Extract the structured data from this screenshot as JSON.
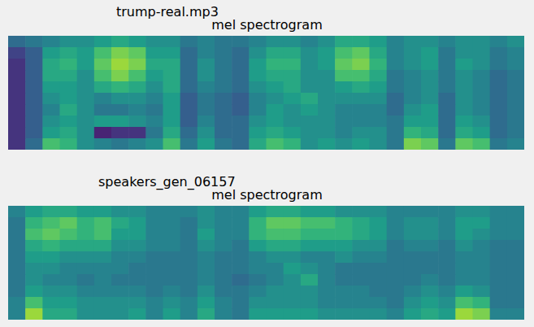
{
  "chart_data": [
    {
      "type": "heatmap",
      "title": "trump-real.mp3",
      "subtitle": "mel spectrogram",
      "tick_labels": false,
      "cells": [
        [
          0.35,
          0.4,
          0.45,
          0.5,
          0.5,
          0.55,
          0.6,
          0.55,
          0.5,
          0.5,
          0.4,
          0.45,
          0.4,
          0.4,
          0.45,
          0.5,
          0.5,
          0.45,
          0.5,
          0.6,
          0.6,
          0.55,
          0.45,
          0.5,
          0.5,
          0.45,
          0.5,
          0.5,
          0.45,
          0.5
        ],
        [
          0.2,
          0.3,
          0.55,
          0.6,
          0.55,
          0.7,
          0.8,
          0.75,
          0.55,
          0.55,
          0.35,
          0.45,
          0.4,
          0.35,
          0.5,
          0.6,
          0.6,
          0.5,
          0.55,
          0.7,
          0.75,
          0.6,
          0.45,
          0.5,
          0.55,
          0.4,
          0.5,
          0.5,
          0.4,
          0.45
        ],
        [
          0.15,
          0.3,
          0.6,
          0.65,
          0.55,
          0.75,
          0.85,
          0.8,
          0.6,
          0.6,
          0.35,
          0.5,
          0.4,
          0.35,
          0.55,
          0.65,
          0.65,
          0.5,
          0.55,
          0.75,
          0.8,
          0.65,
          0.45,
          0.5,
          0.55,
          0.4,
          0.55,
          0.5,
          0.4,
          0.45
        ],
        [
          0.15,
          0.3,
          0.6,
          0.6,
          0.5,
          0.7,
          0.8,
          0.7,
          0.55,
          0.6,
          0.35,
          0.5,
          0.4,
          0.35,
          0.55,
          0.6,
          0.6,
          0.5,
          0.5,
          0.7,
          0.7,
          0.6,
          0.4,
          0.45,
          0.5,
          0.4,
          0.5,
          0.45,
          0.35,
          0.4
        ],
        [
          0.15,
          0.3,
          0.55,
          0.55,
          0.5,
          0.6,
          0.65,
          0.6,
          0.5,
          0.6,
          0.35,
          0.45,
          0.4,
          0.35,
          0.5,
          0.55,
          0.6,
          0.5,
          0.5,
          0.55,
          0.6,
          0.55,
          0.4,
          0.45,
          0.5,
          0.4,
          0.5,
          0.45,
          0.35,
          0.4
        ],
        [
          0.15,
          0.3,
          0.5,
          0.55,
          0.5,
          0.45,
          0.5,
          0.5,
          0.45,
          0.55,
          0.3,
          0.4,
          0.35,
          0.3,
          0.45,
          0.5,
          0.55,
          0.6,
          0.5,
          0.5,
          0.5,
          0.5,
          0.35,
          0.45,
          0.5,
          0.35,
          0.5,
          0.45,
          0.35,
          0.4
        ],
        [
          0.15,
          0.3,
          0.45,
          0.6,
          0.5,
          0.4,
          0.4,
          0.45,
          0.4,
          0.55,
          0.3,
          0.4,
          0.35,
          0.3,
          0.45,
          0.55,
          0.5,
          0.55,
          0.5,
          0.45,
          0.45,
          0.45,
          0.35,
          0.5,
          0.55,
          0.35,
          0.5,
          0.45,
          0.35,
          0.4
        ],
        [
          0.15,
          0.3,
          0.5,
          0.55,
          0.5,
          0.55,
          0.55,
          0.5,
          0.45,
          0.55,
          0.3,
          0.45,
          0.35,
          0.35,
          0.5,
          0.55,
          0.5,
          0.5,
          0.5,
          0.45,
          0.45,
          0.45,
          0.4,
          0.55,
          0.55,
          0.35,
          0.55,
          0.5,
          0.35,
          0.4
        ],
        [
          0.15,
          0.3,
          0.55,
          0.6,
          0.5,
          0.1,
          0.15,
          0.15,
          0.4,
          0.6,
          0.35,
          0.5,
          0.35,
          0.35,
          0.55,
          0.6,
          0.55,
          0.5,
          0.5,
          0.45,
          0.5,
          0.5,
          0.4,
          0.65,
          0.6,
          0.35,
          0.6,
          0.55,
          0.35,
          0.4
        ],
        [
          0.15,
          0.35,
          0.7,
          0.65,
          0.5,
          0.45,
          0.4,
          0.45,
          0.5,
          0.7,
          0.4,
          0.55,
          0.4,
          0.35,
          0.6,
          0.7,
          0.65,
          0.5,
          0.55,
          0.5,
          0.55,
          0.5,
          0.4,
          0.8,
          0.75,
          0.4,
          0.75,
          0.7,
          0.4,
          0.45
        ]
      ]
    },
    {
      "type": "heatmap",
      "title": "speakers_gen_06157",
      "subtitle": "mel spectrogram",
      "tick_labels": false,
      "cells": [
        [
          0.45,
          0.55,
          0.6,
          0.6,
          0.55,
          0.55,
          0.5,
          0.5,
          0.45,
          0.45,
          0.45,
          0.5,
          0.45,
          0.45,
          0.55,
          0.6,
          0.6,
          0.55,
          0.55,
          0.5,
          0.5,
          0.5,
          0.45,
          0.45,
          0.45,
          0.45,
          0.5,
          0.5,
          0.45,
          0.45
        ],
        [
          0.4,
          0.65,
          0.7,
          0.75,
          0.65,
          0.7,
          0.6,
          0.55,
          0.45,
          0.45,
          0.4,
          0.5,
          0.45,
          0.45,
          0.65,
          0.75,
          0.75,
          0.7,
          0.7,
          0.65,
          0.6,
          0.55,
          0.45,
          0.5,
          0.5,
          0.45,
          0.55,
          0.55,
          0.45,
          0.45
        ],
        [
          0.4,
          0.7,
          0.75,
          0.7,
          0.65,
          0.7,
          0.55,
          0.55,
          0.45,
          0.45,
          0.4,
          0.55,
          0.45,
          0.45,
          0.65,
          0.7,
          0.7,
          0.65,
          0.65,
          0.65,
          0.6,
          0.55,
          0.45,
          0.5,
          0.5,
          0.45,
          0.55,
          0.5,
          0.45,
          0.45
        ],
        [
          0.4,
          0.6,
          0.65,
          0.6,
          0.6,
          0.6,
          0.5,
          0.5,
          0.45,
          0.45,
          0.4,
          0.5,
          0.45,
          0.4,
          0.55,
          0.6,
          0.6,
          0.55,
          0.55,
          0.55,
          0.5,
          0.5,
          0.4,
          0.45,
          0.45,
          0.4,
          0.5,
          0.45,
          0.4,
          0.4
        ],
        [
          0.4,
          0.55,
          0.55,
          0.5,
          0.5,
          0.5,
          0.45,
          0.45,
          0.4,
          0.4,
          0.4,
          0.45,
          0.4,
          0.4,
          0.45,
          0.5,
          0.5,
          0.45,
          0.45,
          0.5,
          0.45,
          0.45,
          0.4,
          0.4,
          0.4,
          0.4,
          0.45,
          0.45,
          0.4,
          0.4
        ],
        [
          0.4,
          0.5,
          0.5,
          0.45,
          0.45,
          0.45,
          0.45,
          0.4,
          0.4,
          0.4,
          0.4,
          0.45,
          0.4,
          0.4,
          0.45,
          0.45,
          0.55,
          0.5,
          0.45,
          0.4,
          0.4,
          0.4,
          0.4,
          0.4,
          0.4,
          0.4,
          0.45,
          0.45,
          0.4,
          0.4
        ],
        [
          0.4,
          0.5,
          0.45,
          0.45,
          0.4,
          0.45,
          0.4,
          0.4,
          0.4,
          0.4,
          0.4,
          0.45,
          0.4,
          0.35,
          0.4,
          0.45,
          0.5,
          0.6,
          0.45,
          0.4,
          0.4,
          0.4,
          0.4,
          0.4,
          0.45,
          0.4,
          0.45,
          0.45,
          0.4,
          0.4
        ],
        [
          0.4,
          0.55,
          0.5,
          0.5,
          0.45,
          0.45,
          0.45,
          0.45,
          0.4,
          0.45,
          0.4,
          0.5,
          0.4,
          0.4,
          0.45,
          0.5,
          0.5,
          0.5,
          0.45,
          0.45,
          0.45,
          0.4,
          0.4,
          0.45,
          0.5,
          0.45,
          0.55,
          0.5,
          0.4,
          0.4
        ],
        [
          0.45,
          0.7,
          0.55,
          0.55,
          0.5,
          0.5,
          0.5,
          0.5,
          0.45,
          0.5,
          0.45,
          0.55,
          0.45,
          0.4,
          0.5,
          0.5,
          0.5,
          0.5,
          0.45,
          0.45,
          0.45,
          0.45,
          0.4,
          0.5,
          0.55,
          0.5,
          0.7,
          0.65,
          0.4,
          0.4
        ],
        [
          0.45,
          0.85,
          0.6,
          0.6,
          0.5,
          0.5,
          0.5,
          0.55,
          0.45,
          0.55,
          0.45,
          0.6,
          0.45,
          0.4,
          0.55,
          0.55,
          0.55,
          0.55,
          0.5,
          0.5,
          0.5,
          0.5,
          0.45,
          0.55,
          0.6,
          0.55,
          0.85,
          0.8,
          0.45,
          0.45
        ]
      ]
    }
  ]
}
